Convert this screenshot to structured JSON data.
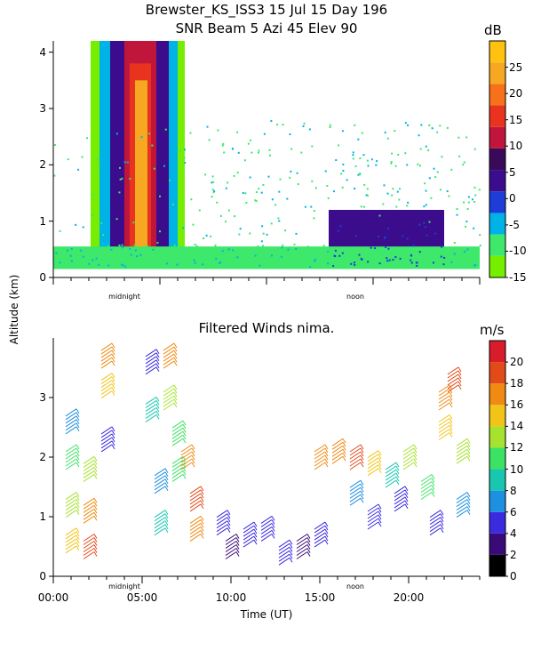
{
  "header": {
    "title_line1": "Brewster_KS_ISS3  15 Jul 15 Day 196",
    "title_line2": "SNR Beam 5 Azi  45 Elev 90"
  },
  "colors": {
    "snr_scale": [
      "#76EE00",
      "#3DE86A",
      "#00B3E6",
      "#1E3CD8",
      "#3B0D8C",
      "#3A0A5A",
      "#C1163C",
      "#E8341E",
      "#F7701A",
      "#F6A822",
      "#FFC20E"
    ],
    "wind_scale": [
      "#000000",
      "#3A0A78",
      "#3A2BE0",
      "#1E90E0",
      "#19C7B0",
      "#3CE264",
      "#A6E22E",
      "#F2C417",
      "#F08A12",
      "#E24A1A",
      "#D91C2A"
    ]
  },
  "chart_data": [
    {
      "type": "heatmap",
      "title": "SNR Beam 5 Azi  45 Elev 90",
      "ylabel": "Altitude (km)",
      "ylim": [
        0,
        4.2
      ],
      "yticks": [
        "0",
        "1",
        "2",
        "3",
        "4"
      ],
      "x_annotations": [
        "midnight",
        "noon"
      ],
      "colorbar": {
        "unit": "dB",
        "range": [
          -15,
          30
        ],
        "ticks": [
          "-15",
          "-10",
          "-5",
          "0",
          "5",
          "10",
          "15",
          "20",
          "25"
        ]
      },
      "regions": [
        {
          "x0": 2.1,
          "x1": 7.4,
          "y0": 0.15,
          "y1": 4.2,
          "snr_db": -13
        },
        {
          "x0": 2.6,
          "x1": 7.0,
          "y0": 0.15,
          "y1": 4.2,
          "snr_db": -7
        },
        {
          "x0": 3.2,
          "x1": 6.5,
          "y0": 0.15,
          "y1": 4.2,
          "snr_db": 2
        },
        {
          "x0": 4.0,
          "x1": 5.8,
          "y0": 0.15,
          "y1": 4.2,
          "snr_db": 10
        },
        {
          "x0": 4.3,
          "x1": 5.5,
          "y0": 0.15,
          "y1": 3.8,
          "snr_db": 18
        },
        {
          "x0": 4.6,
          "x1": 5.3,
          "y0": 0.15,
          "y1": 3.5,
          "snr_db": 25
        },
        {
          "x0": 15.5,
          "x1": 22.0,
          "y0": 0.15,
          "y1": 1.2,
          "snr_db": 2
        },
        {
          "x0": 0.0,
          "x1": 24.0,
          "y0": 0.15,
          "y1": 0.55,
          "snr_db": -12
        }
      ]
    },
    {
      "type": "scatter",
      "title": "Filtered Winds nima.",
      "xlabel": "Time (UT)",
      "ylabel": "Altitude (km)",
      "xlim": [
        0,
        24
      ],
      "ylim": [
        0,
        4
      ],
      "xticks": [
        "00:00",
        "05:00",
        "10:00",
        "15:00",
        "20:00"
      ],
      "yticks": [
        "0",
        "1",
        "2",
        "3"
      ],
      "x_annotations": [
        "midnight",
        "noon"
      ],
      "colorbar": {
        "unit": "m/s",
        "range": [
          0,
          22
        ],
        "ticks": [
          "0",
          "2",
          "4",
          "6",
          "8",
          "10",
          "12",
          "14",
          "16",
          "18",
          "20"
        ]
      },
      "series": [
        {
          "values": [
            {
              "t": 1.0,
              "alt": 0.6,
              "speed": 14
            },
            {
              "t": 1.0,
              "alt": 1.2,
              "speed": 12
            },
            {
              "t": 1.0,
              "alt": 2.0,
              "speed": 10
            },
            {
              "t": 1.0,
              "alt": 2.6,
              "speed": 7
            },
            {
              "t": 2.0,
              "alt": 0.5,
              "speed": 19
            },
            {
              "t": 2.0,
              "alt": 1.1,
              "speed": 17
            },
            {
              "t": 2.0,
              "alt": 1.8,
              "speed": 13
            },
            {
              "t": 3.0,
              "alt": 3.2,
              "speed": 15
            },
            {
              "t": 3.0,
              "alt": 3.7,
              "speed": 17
            },
            {
              "t": 3.0,
              "alt": 2.3,
              "speed": 4
            },
            {
              "t": 5.5,
              "alt": 3.6,
              "speed": 4
            },
            {
              "t": 5.5,
              "alt": 2.8,
              "speed": 8
            },
            {
              "t": 6.0,
              "alt": 0.9,
              "speed": 9
            },
            {
              "t": 6.0,
              "alt": 1.6,
              "speed": 7
            },
            {
              "t": 6.5,
              "alt": 3.7,
              "speed": 16
            },
            {
              "t": 6.5,
              "alt": 3.0,
              "speed": 13
            },
            {
              "t": 7.0,
              "alt": 2.4,
              "speed": 11
            },
            {
              "t": 7.0,
              "alt": 1.8,
              "speed": 10
            },
            {
              "t": 7.5,
              "alt": 2.0,
              "speed": 16
            },
            {
              "t": 8.0,
              "alt": 1.3,
              "speed": 18
            },
            {
              "t": 8.0,
              "alt": 0.8,
              "speed": 17
            },
            {
              "t": 9.5,
              "alt": 0.9,
              "speed": 5
            },
            {
              "t": 10.0,
              "alt": 0.5,
              "speed": 3
            },
            {
              "t": 11.0,
              "alt": 0.7,
              "speed": 4
            },
            {
              "t": 12.0,
              "alt": 0.8,
              "speed": 5
            },
            {
              "t": 13.0,
              "alt": 0.4,
              "speed": 4
            },
            {
              "t": 14.0,
              "alt": 0.5,
              "speed": 3
            },
            {
              "t": 15.0,
              "alt": 0.7,
              "speed": 4
            },
            {
              "t": 15.0,
              "alt": 2.0,
              "speed": 17
            },
            {
              "t": 16.0,
              "alt": 2.1,
              "speed": 16
            },
            {
              "t": 17.0,
              "alt": 2.0,
              "speed": 18
            },
            {
              "t": 17.0,
              "alt": 1.4,
              "speed": 6
            },
            {
              "t": 18.0,
              "alt": 1.9,
              "speed": 15
            },
            {
              "t": 18.0,
              "alt": 1.0,
              "speed": 5
            },
            {
              "t": 19.0,
              "alt": 1.7,
              "speed": 9
            },
            {
              "t": 19.5,
              "alt": 1.3,
              "speed": 4
            },
            {
              "t": 20.0,
              "alt": 2.0,
              "speed": 13
            },
            {
              "t": 21.0,
              "alt": 1.5,
              "speed": 11
            },
            {
              "t": 21.5,
              "alt": 0.9,
              "speed": 4
            },
            {
              "t": 22.0,
              "alt": 2.5,
              "speed": 15
            },
            {
              "t": 22.0,
              "alt": 3.0,
              "speed": 17
            },
            {
              "t": 22.5,
              "alt": 3.3,
              "speed": 19
            },
            {
              "t": 23.0,
              "alt": 2.1,
              "speed": 12
            },
            {
              "t": 23.0,
              "alt": 1.2,
              "speed": 6
            }
          ]
        }
      ]
    }
  ]
}
